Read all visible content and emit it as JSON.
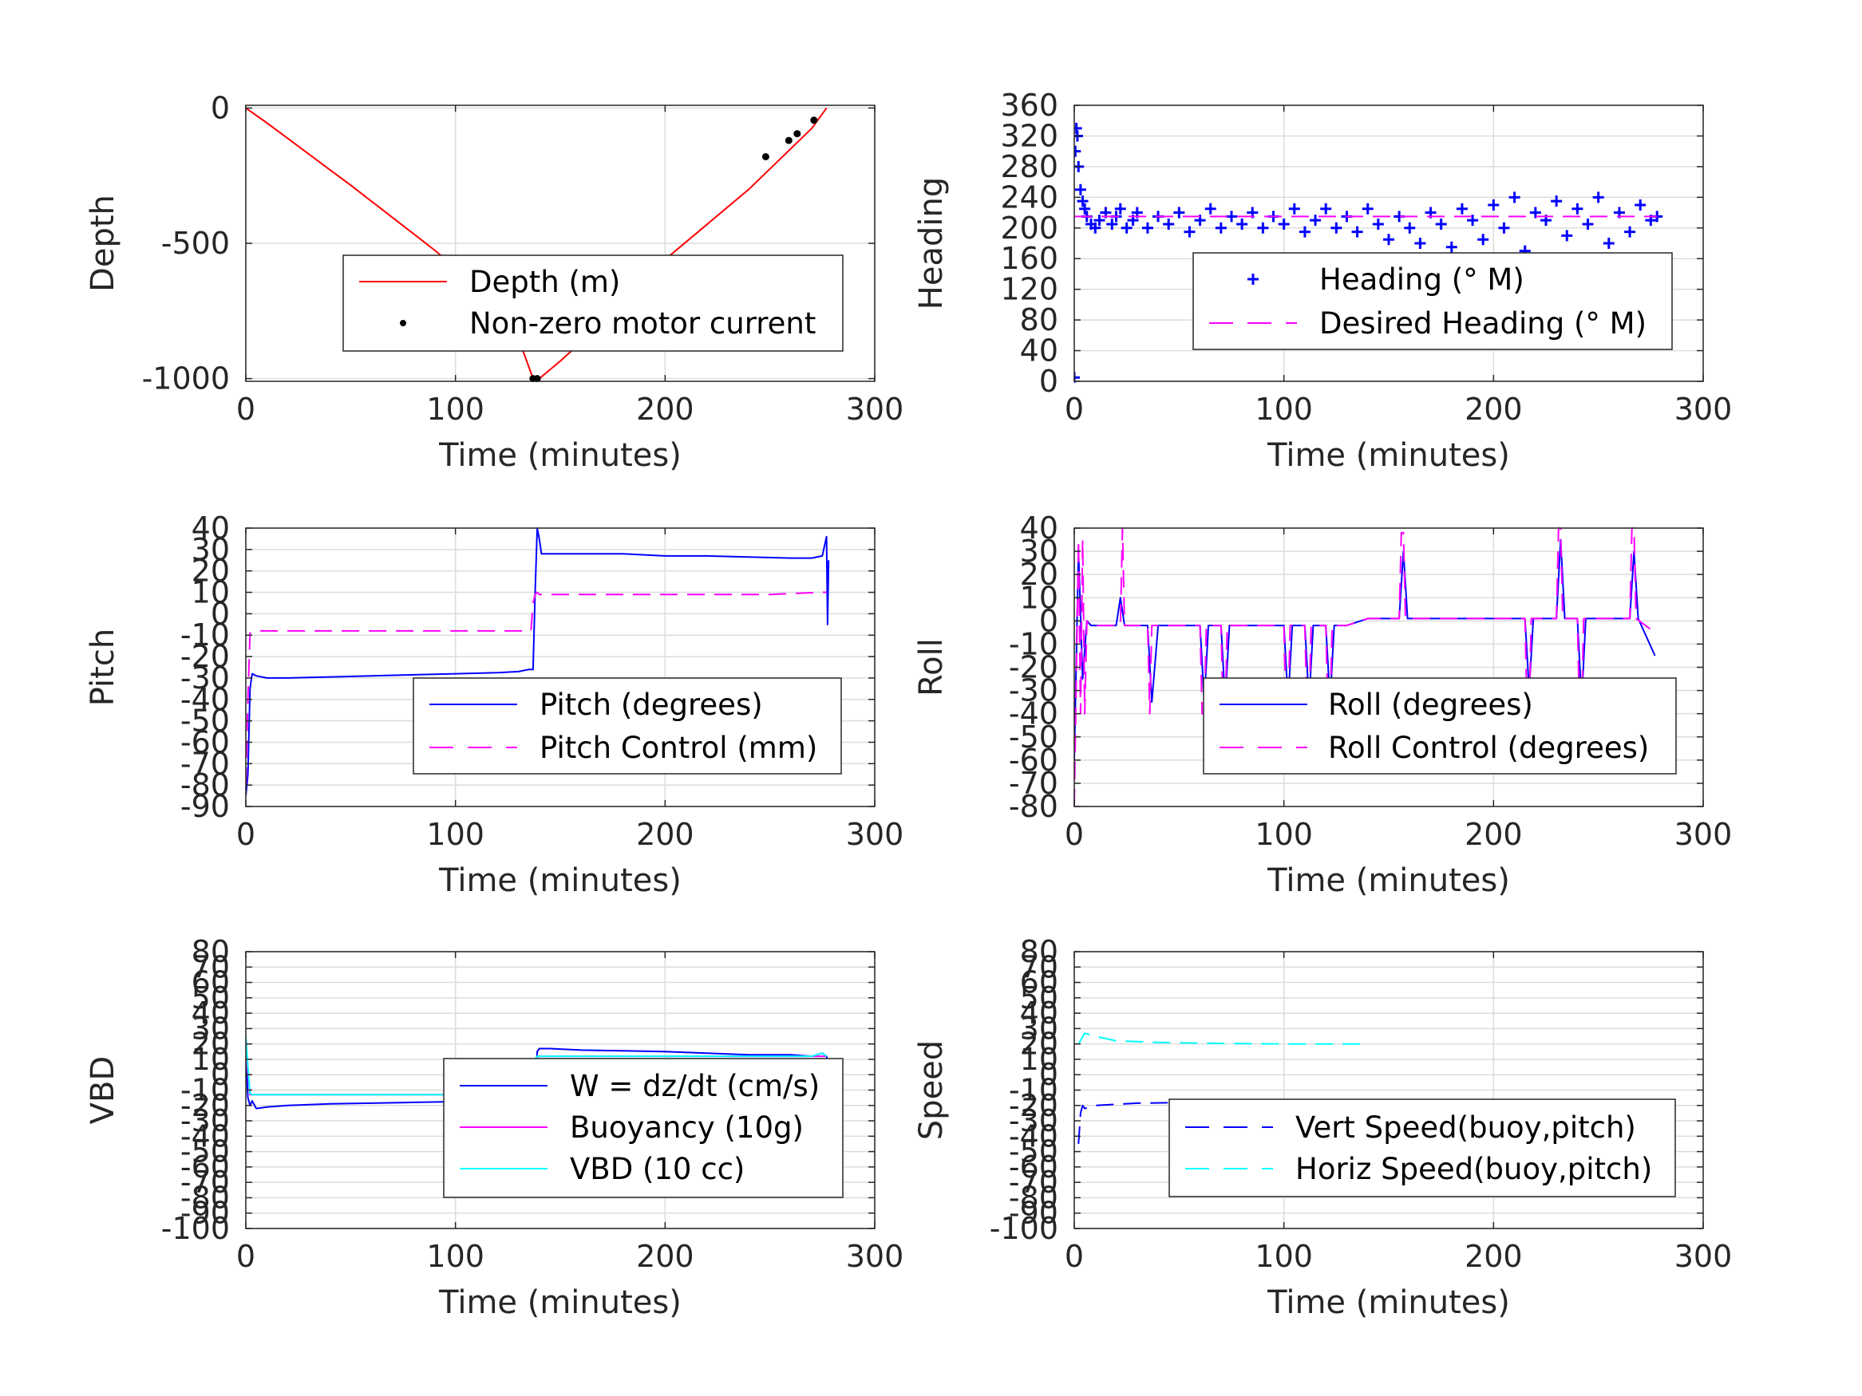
{
  "figure": {
    "background": "#ffffff",
    "grid_color": "#dcdcdc"
  },
  "chart_data": [
    {
      "id": "depth",
      "type": "line",
      "xlabel": "Time (minutes)",
      "ylabel": "Depth",
      "xlim": [
        0,
        300
      ],
      "ylim": [
        -1010,
        10
      ],
      "xticks": [
        0,
        100,
        200,
        300
      ],
      "yticks": [
        -1000,
        -500,
        0
      ],
      "grid": true,
      "legend": {
        "placement": "center-right"
      },
      "series": [
        {
          "name": "Depth (m)",
          "style": "line",
          "color": "#ff0000",
          "x": [
            0,
            10,
            20,
            30,
            40,
            50,
            60,
            70,
            80,
            90,
            100,
            110,
            120,
            130,
            137,
            140,
            150,
            160,
            170,
            180,
            190,
            200,
            210,
            220,
            230,
            240,
            250,
            260,
            270,
            277
          ],
          "y": [
            0,
            -55,
            -112,
            -170,
            -228,
            -285,
            -345,
            -405,
            -465,
            -525,
            -590,
            -660,
            -740,
            -850,
            -1000,
            -1000,
            -935,
            -865,
            -790,
            -715,
            -635,
            -560,
            -495,
            -430,
            -365,
            -300,
            -225,
            -150,
            -75,
            0
          ]
        },
        {
          "name": "Non-zero motor current",
          "style": "markers",
          "color": "#000000",
          "x": [
            137,
            139,
            248,
            259,
            263,
            271
          ],
          "y": [
            -1000,
            -1000,
            -180,
            -120,
            -95,
            -45
          ]
        }
      ]
    },
    {
      "id": "heading",
      "type": "scatter",
      "xlabel": "Time (minutes)",
      "ylabel": "Heading",
      "xlim": [
        0,
        300
      ],
      "ylim": [
        0,
        360
      ],
      "xticks": [
        0,
        100,
        200,
        300
      ],
      "yticks": [
        0,
        40,
        80,
        120,
        160,
        200,
        240,
        280,
        320,
        360
      ],
      "grid": true,
      "legend": {
        "placement": "center-right"
      },
      "series": [
        {
          "name": "Heading (° M)",
          "style": "plus",
          "color": "#0000ff",
          "x": [
            0,
            0.5,
            1,
            1.5,
            2,
            3,
            4,
            5,
            6,
            8,
            10,
            12,
            15,
            18,
            20,
            22,
            25,
            28,
            30,
            35,
            40,
            45,
            50,
            55,
            60,
            65,
            70,
            75,
            80,
            85,
            90,
            95,
            100,
            105,
            110,
            115,
            120,
            125,
            130,
            135,
            140,
            145,
            150,
            155,
            160,
            165,
            170,
            175,
            180,
            185,
            190,
            195,
            200,
            205,
            210,
            215,
            220,
            225,
            230,
            235,
            240,
            245,
            250,
            255,
            260,
            265,
            270,
            275,
            278
          ],
          "y": [
            5,
            300,
            330,
            320,
            280,
            250,
            235,
            225,
            215,
            205,
            200,
            210,
            220,
            205,
            215,
            225,
            200,
            210,
            220,
            200,
            215,
            205,
            220,
            195,
            210,
            225,
            200,
            215,
            205,
            220,
            200,
            215,
            205,
            225,
            195,
            210,
            225,
            200,
            215,
            195,
            225,
            205,
            185,
            215,
            200,
            180,
            220,
            205,
            175,
            225,
            210,
            185,
            230,
            200,
            240,
            170,
            220,
            210,
            235,
            190,
            225,
            205,
            240,
            180,
            220,
            195,
            230,
            210,
            215
          ]
        },
        {
          "name": "Desired Heading (° M)",
          "style": "dash",
          "color": "#ff00ff",
          "x": [
            0,
            278
          ],
          "y": [
            215,
            215
          ]
        }
      ]
    },
    {
      "id": "pitch",
      "type": "line",
      "xlabel": "Time (minutes)",
      "ylabel": "Pitch",
      "xlim": [
        0,
        300
      ],
      "ylim": [
        -90,
        40
      ],
      "xticks": [
        0,
        100,
        200,
        300
      ],
      "yticks": [
        -90,
        -80,
        -70,
        -60,
        -50,
        -40,
        -30,
        -20,
        -10,
        0,
        10,
        20,
        30,
        40
      ],
      "grid": true,
      "legend": {
        "placement": "center-right"
      },
      "series": [
        {
          "name": "Pitch (degrees)",
          "style": "line",
          "color": "#0000ff",
          "x": [
            0,
            1,
            2,
            3,
            5,
            10,
            20,
            40,
            60,
            80,
            100,
            120,
            130,
            135,
            137,
            138,
            139,
            140,
            141,
            145,
            160,
            180,
            200,
            220,
            240,
            260,
            270,
            275,
            277,
            277.5,
            278
          ],
          "y": [
            -85,
            -75,
            -35,
            -28,
            -29,
            -30,
            -30,
            -29.5,
            -29,
            -28.5,
            -28,
            -27.5,
            -27,
            -26,
            -26,
            10,
            40,
            35,
            28,
            28,
            28,
            28,
            27,
            27,
            26.5,
            26,
            26,
            27,
            36,
            -5,
            25
          ]
        },
        {
          "name": "Pitch Control (mm)",
          "style": "dash",
          "color": "#ff00ff",
          "x": [
            0,
            1,
            2,
            5,
            50,
            100,
            130,
            136,
            137,
            138,
            139,
            140,
            150,
            200,
            250,
            275,
            277
          ],
          "y": [
            -80,
            -40,
            -9,
            -8,
            -8,
            -8,
            -8,
            -8,
            5,
            9,
            10,
            9,
            9,
            9,
            9,
            10,
            10
          ]
        }
      ]
    },
    {
      "id": "roll",
      "type": "line",
      "xlabel": "Time (minutes)",
      "ylabel": "Roll",
      "xlim": [
        0,
        300
      ],
      "ylim": [
        -80,
        40
      ],
      "xticks": [
        0,
        100,
        200,
        300
      ],
      "yticks": [
        -80,
        -70,
        -60,
        -50,
        -40,
        -30,
        -20,
        -10,
        0,
        10,
        20,
        30,
        40
      ],
      "grid": true,
      "legend": {
        "placement": "center-right"
      },
      "series": [
        {
          "name": "Roll (degrees)",
          "style": "line",
          "color": "#0000ff",
          "x": [
            0,
            2,
            4,
            6,
            8,
            10,
            20,
            22,
            24,
            26,
            30,
            35,
            37,
            40,
            60,
            62,
            64,
            70,
            72,
            74,
            100,
            102,
            104,
            110,
            112,
            114,
            120,
            122,
            124,
            130,
            140,
            155,
            157,
            159,
            200,
            215,
            217,
            219,
            230,
            232,
            234,
            240,
            242,
            244,
            265,
            267,
            269,
            277
          ],
          "y": [
            -60,
            30,
            -25,
            0,
            -2,
            -2,
            -2,
            10,
            -2,
            -2,
            -2,
            -2,
            -35,
            -2,
            -2,
            -35,
            -2,
            -2,
            -35,
            -2,
            -2,
            -35,
            -2,
            -2,
            -35,
            -2,
            -2,
            -35,
            -2,
            -2,
            1,
            1,
            30,
            1,
            1,
            1,
            -30,
            1,
            1,
            35,
            1,
            1,
            -35,
            1,
            1,
            30,
            1,
            -15
          ]
        },
        {
          "name": "Roll Control (degrees)",
          "style": "dash",
          "color": "#ff00ff",
          "x": [
            0,
            2,
            3,
            4,
            5,
            6,
            7,
            10,
            20,
            22,
            23,
            24,
            26,
            30,
            35,
            36,
            37,
            40,
            60,
            61,
            62,
            63,
            70,
            71,
            72,
            73,
            100,
            101,
            102,
            103,
            110,
            111,
            112,
            113,
            120,
            121,
            122,
            123,
            130,
            140,
            155,
            156,
            157,
            158,
            200,
            215,
            216,
            217,
            218,
            230,
            231,
            232,
            233,
            240,
            241,
            242,
            243,
            265,
            266,
            267,
            268,
            277
          ],
          "y": [
            -80,
            35,
            -40,
            35,
            -40,
            0,
            -2,
            -2,
            -2,
            -2,
            40,
            -2,
            -2,
            -2,
            -2,
            -40,
            -2,
            -2,
            -2,
            -40,
            -40,
            -2,
            -2,
            -40,
            -40,
            -2,
            -2,
            -40,
            -40,
            -2,
            -2,
            -40,
            -40,
            -2,
            -2,
            -40,
            -40,
            -2,
            -2,
            1,
            1,
            38,
            38,
            1,
            1,
            1,
            -40,
            -40,
            1,
            1,
            40,
            40,
            1,
            1,
            -40,
            -40,
            1,
            1,
            40,
            40,
            1,
            -5
          ]
        }
      ]
    },
    {
      "id": "vbd",
      "type": "line",
      "xlabel": "Time (minutes)",
      "ylabel": "VBD",
      "xlim": [
        0,
        300
      ],
      "ylim": [
        -100,
        80
      ],
      "xticks": [
        0,
        100,
        200,
        300
      ],
      "yticks": [
        -100,
        -90,
        -80,
        -70,
        -60,
        -50,
        -40,
        -30,
        -20,
        -10,
        0,
        10,
        20,
        30,
        40,
        50,
        60,
        70,
        80
      ],
      "grid": true,
      "legend": {
        "placement": "center-right"
      },
      "series": [
        {
          "name": "W = dz/dt (cm/s)",
          "style": "line",
          "color": "#0000ff",
          "x": [
            0,
            1,
            2,
            3,
            5,
            10,
            20,
            40,
            60,
            80,
            100,
            120,
            130,
            137,
            138,
            139,
            140,
            145,
            160,
            180,
            200,
            220,
            240,
            260,
            270,
            275,
            277,
            278
          ],
          "y": [
            15,
            -15,
            -20,
            -17,
            -22,
            -21,
            -20,
            -19,
            -18.5,
            -18,
            -17.5,
            -17,
            -17,
            -17,
            -10,
            15,
            17,
            17,
            16,
            15.5,
            15,
            14,
            13,
            13,
            12,
            14,
            12,
            5
          ]
        },
        {
          "name": "Buoyancy (10g)",
          "style": "line",
          "color": "#ff00ff",
          "x": [
            0,
            2,
            137,
            138,
            139,
            277
          ],
          "y": [
            15,
            -13,
            -13,
            10,
            12,
            12
          ]
        },
        {
          "name": "VBD (10 cc)",
          "style": "line",
          "color": "#00ffff",
          "x": [
            0,
            1,
            2,
            3,
            137,
            138,
            139,
            270,
            275,
            277
          ],
          "y": [
            25,
            5,
            -12,
            -13,
            -13,
            10,
            12,
            12,
            14,
            12
          ]
        }
      ]
    },
    {
      "id": "speed",
      "type": "line",
      "xlabel": "Time (minutes)",
      "ylabel": "Speed",
      "xlim": [
        0,
        300
      ],
      "ylim": [
        -100,
        80
      ],
      "xticks": [
        0,
        100,
        200,
        300
      ],
      "yticks": [
        -100,
        -90,
        -80,
        -70,
        -60,
        -50,
        -40,
        -30,
        -20,
        -10,
        0,
        10,
        20,
        30,
        40,
        50,
        60,
        70,
        80
      ],
      "grid": true,
      "legend": {
        "placement": "center-right"
      },
      "series": [
        {
          "name": "Vert Speed(buoy,pitch)",
          "style": "dash",
          "color": "#0000ff",
          "x": [
            2,
            3,
            4,
            5,
            10,
            30,
            60,
            100,
            137
          ],
          "y": [
            -45,
            -25,
            -20,
            -22,
            -20,
            -18.5,
            -18,
            -18,
            -17
          ]
        },
        {
          "name": "Horiz Speed(buoy,pitch)",
          "style": "dash",
          "color": "#00ffff",
          "x": [
            2,
            5,
            10,
            20,
            40,
            60,
            100,
            137
          ],
          "y": [
            20,
            27,
            25,
            22,
            21,
            20.5,
            20,
            20
          ]
        }
      ]
    }
  ]
}
